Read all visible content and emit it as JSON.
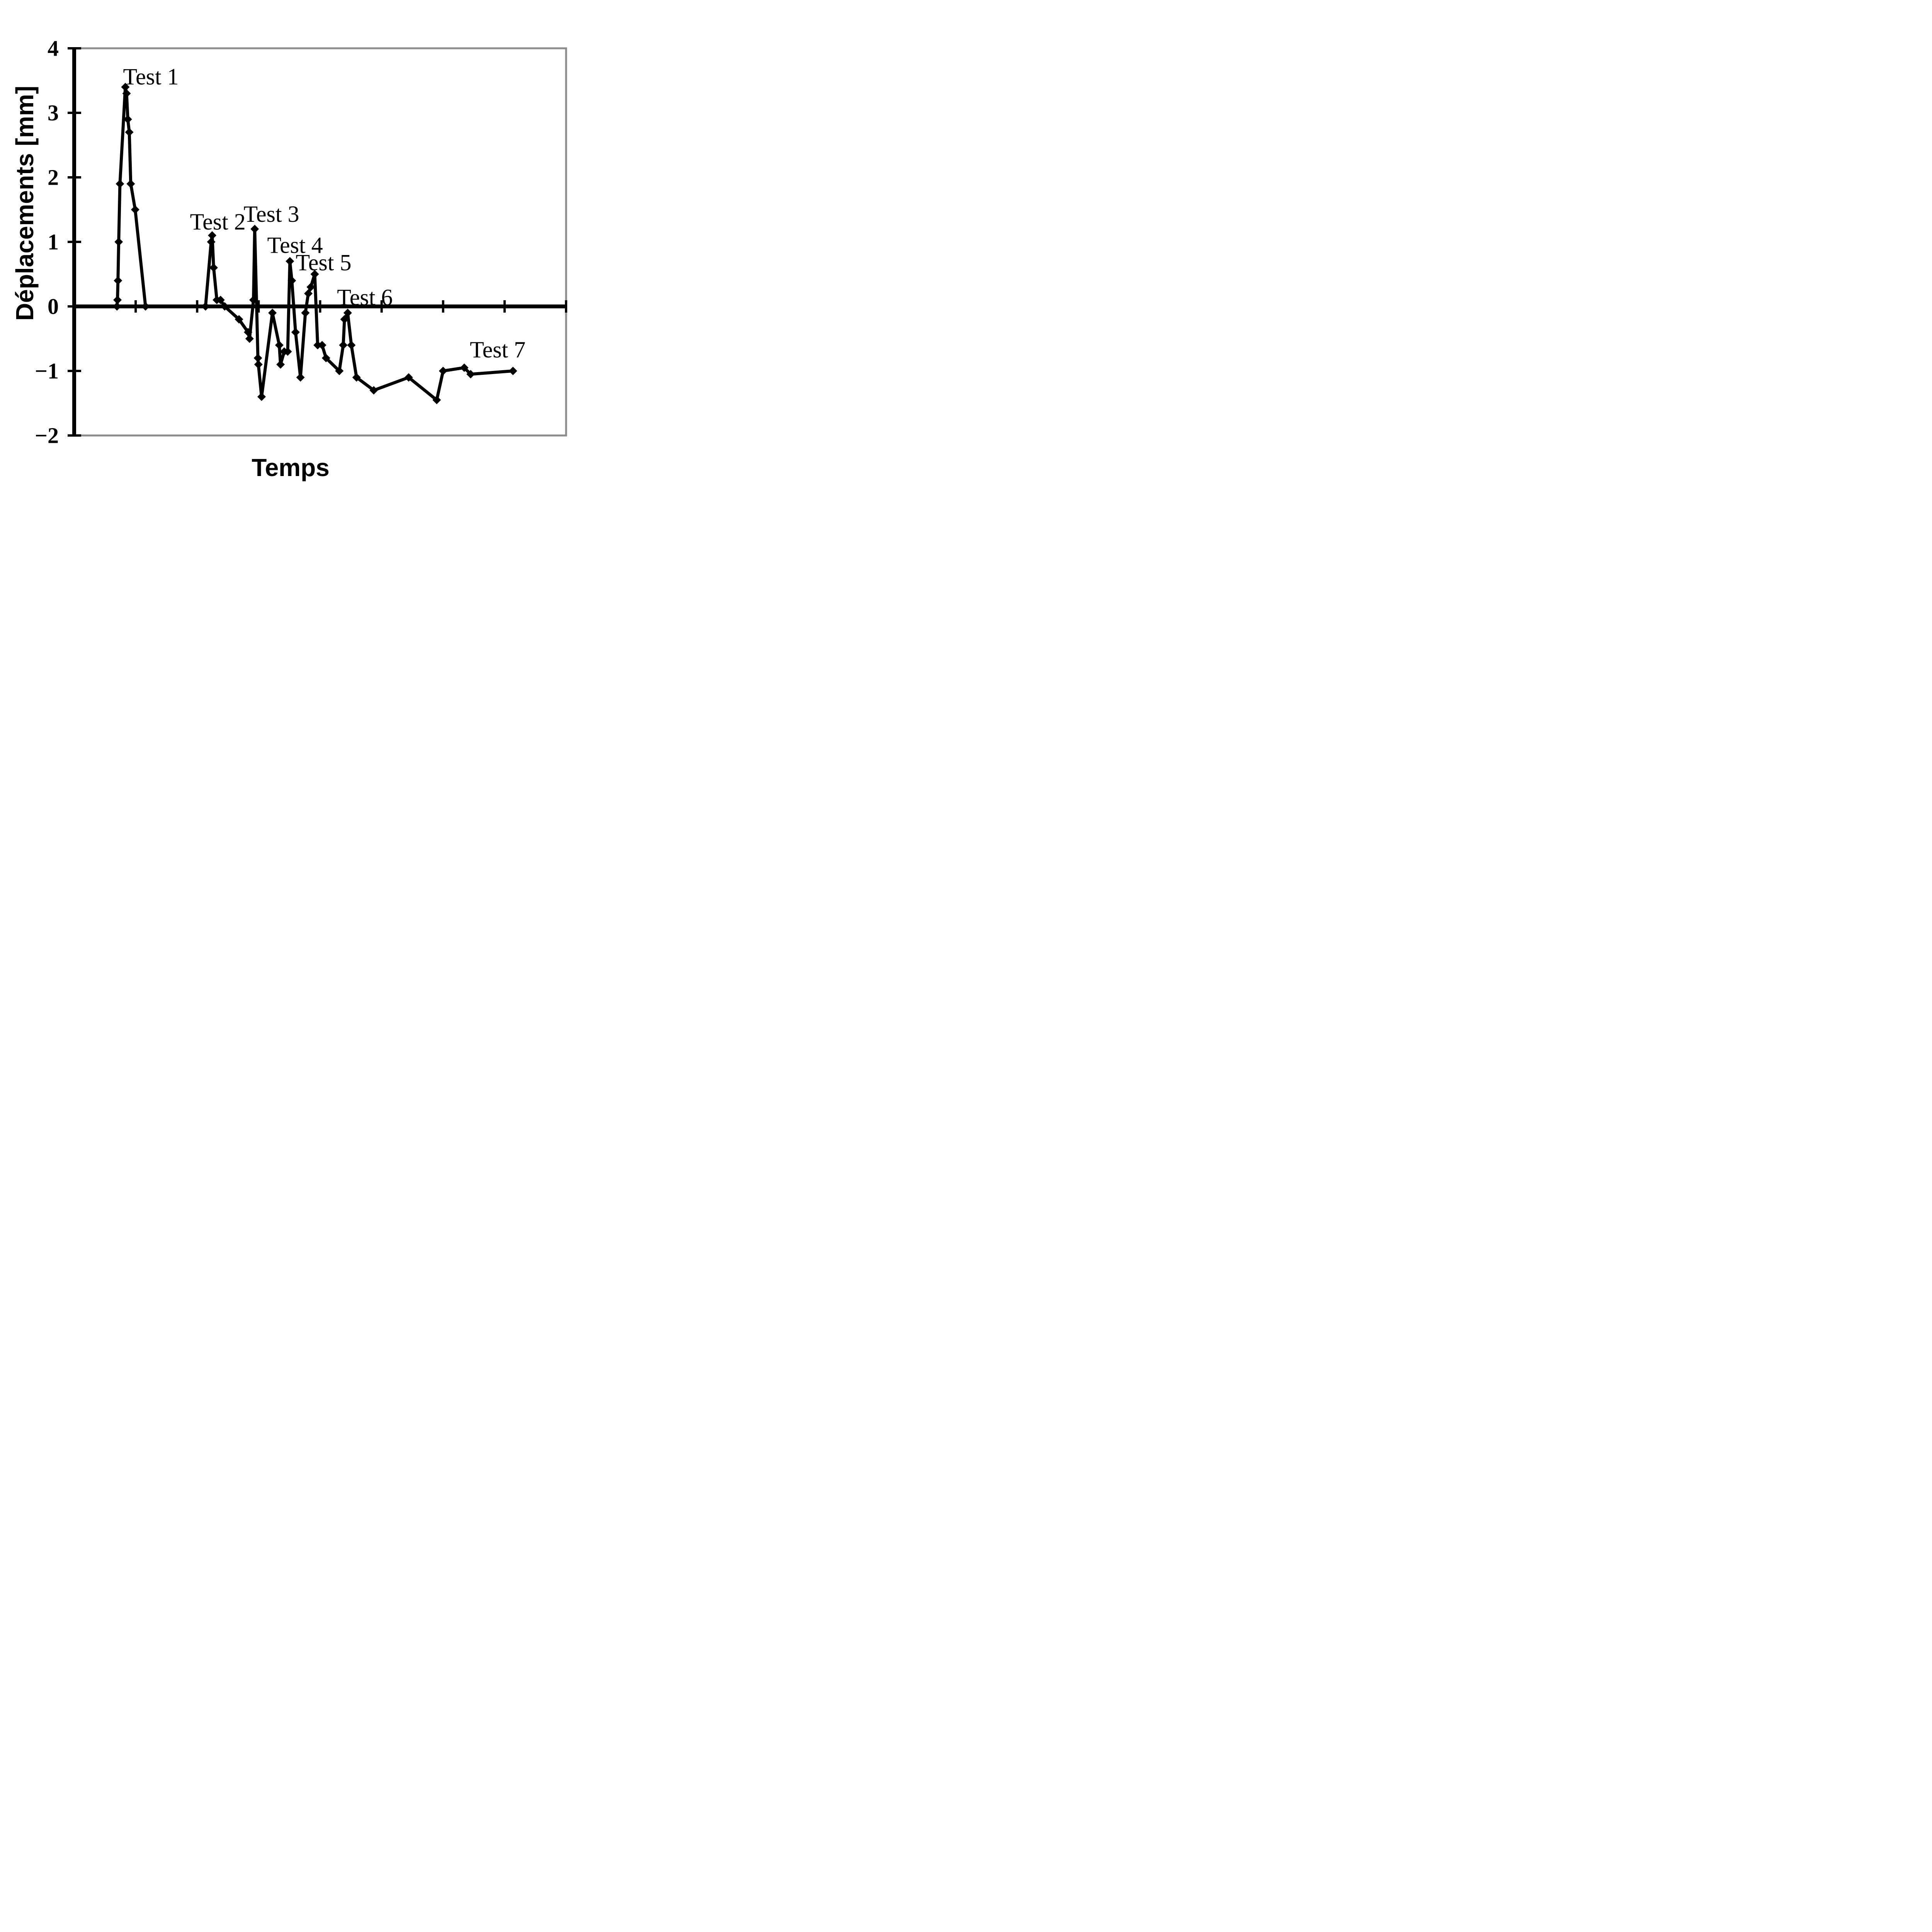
{
  "figure": {
    "background_color": "#ffffff",
    "border_color": "#8c8c8c",
    "axis_color": "#000000",
    "series_color": "#000000"
  },
  "chart_data": {
    "type": "line",
    "title": "",
    "xlabel": "Temps",
    "ylabel": "Déplacements [mm]",
    "xlim": [
      0,
      100
    ],
    "ylim": [
      -2,
      4
    ],
    "grid": false,
    "legend_position": "none",
    "x_tick_positions": [
      12.5,
      25,
      37.5,
      50,
      62.5,
      75,
      87.5,
      100
    ],
    "x_tick_labels": [
      "",
      "",
      "",
      "",
      "",
      "",
      "",
      ""
    ],
    "y_tick_values": [
      4,
      3,
      2,
      1,
      0,
      -1,
      -2
    ],
    "y_tick_labels": [
      "4",
      "3",
      "2",
      "1",
      "0",
      "−1",
      "−2"
    ],
    "series": [
      {
        "name": "Déplacements",
        "marker": "diamond",
        "color": "#000000",
        "points": [
          [
            8.7,
            0
          ],
          [
            8.8,
            0.1
          ],
          [
            8.9,
            0.4
          ],
          [
            9.05,
            1.0
          ],
          [
            9.3,
            1.9
          ],
          [
            10.4,
            3.4
          ],
          [
            10.65,
            3.3
          ],
          [
            10.9,
            2.9
          ],
          [
            11.2,
            2.7
          ],
          [
            11.5,
            1.9
          ],
          [
            12.4,
            1.5
          ],
          [
            14.5,
            0
          ],
          [
            26.7,
            0
          ],
          [
            27.85,
            1.0
          ],
          [
            28.05,
            1.1
          ],
          [
            28.35,
            0.6
          ],
          [
            29.0,
            0.1
          ],
          [
            29.75,
            0.1
          ],
          [
            30.6,
            0
          ],
          [
            33.5,
            -0.2
          ],
          [
            35.35,
            -0.4
          ],
          [
            35.65,
            -0.5
          ],
          [
            36.45,
            0.1
          ],
          [
            36.7,
            1.2
          ],
          [
            37.35,
            -0.8
          ],
          [
            37.45,
            -0.9
          ],
          [
            38.1,
            -1.4
          ],
          [
            40.3,
            -0.1
          ],
          [
            41.7,
            -0.6
          ],
          [
            41.95,
            -0.9
          ],
          [
            42.7,
            -0.7
          ],
          [
            43.4,
            -0.7
          ],
          [
            43.85,
            0.7
          ],
          [
            44.25,
            0.4
          ],
          [
            45.0,
            -0.4
          ],
          [
            46.0,
            -1.1
          ],
          [
            47.0,
            -0.1
          ],
          [
            47.6,
            0.2
          ],
          [
            48.1,
            0.3
          ],
          [
            48.9,
            0.5
          ],
          [
            49.5,
            -0.6
          ],
          [
            50.4,
            -0.6
          ],
          [
            51.2,
            -0.8
          ],
          [
            53.9,
            -1.0
          ],
          [
            54.7,
            -0.6
          ],
          [
            54.95,
            -0.2
          ],
          [
            55.6,
            -0.1
          ],
          [
            56.35,
            -0.6
          ],
          [
            57.4,
            -1.1
          ],
          [
            60.9,
            -1.3
          ],
          [
            68.0,
            -1.1
          ],
          [
            73.7,
            -1.45
          ],
          [
            75.0,
            -1.0
          ],
          [
            79.3,
            -0.95
          ],
          [
            80.6,
            -1.05
          ],
          [
            89.2,
            -1.0
          ]
        ]
      }
    ],
    "annotations": [
      {
        "label": "Test 1",
        "x": 15.6,
        "y": 3.56
      },
      {
        "label": "Test 2",
        "x": 29.2,
        "y": 1.31
      },
      {
        "label": "Test 3",
        "x": 40.1,
        "y": 1.43
      },
      {
        "label": "Test 4",
        "x": 44.9,
        "y": 0.95
      },
      {
        "label": "Test 5",
        "x": 50.7,
        "y": 0.68
      },
      {
        "label": "Test 6",
        "x": 59.1,
        "y": 0.14
      },
      {
        "label": "Test 7",
        "x": 86.1,
        "y": -0.67
      }
    ]
  }
}
